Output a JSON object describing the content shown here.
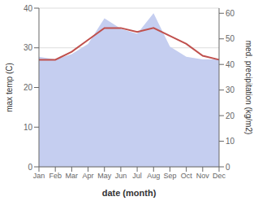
{
  "chart_data": {
    "type": "line",
    "xlabel": "date (month)",
    "ylabel": "max temp (C)",
    "y2label": "med. precipitation (kg/m2)",
    "categories": [
      "Jan",
      "Feb",
      "Mar",
      "Apr",
      "May",
      "Jun",
      "Jul",
      "Aug",
      "Sep",
      "Oct",
      "Nov",
      "Dec"
    ],
    "series": [
      {
        "type": "area",
        "axis": "y2",
        "color": "#c5cef0",
        "values": [
          43,
          42,
          44,
          48,
          58,
          54,
          52,
          60,
          47,
          43,
          42,
          42
        ]
      },
      {
        "type": "line",
        "color": "#c0504d",
        "values": [
          27,
          27,
          29,
          32,
          35,
          35,
          34,
          35,
          33,
          31,
          28,
          27
        ]
      }
    ],
    "ylim": [
      0,
      40
    ],
    "yticks": [
      0,
      10,
      20,
      30,
      40
    ],
    "y2lim": [
      0,
      62
    ],
    "y2ticks": [
      0,
      10,
      20,
      30,
      40,
      50,
      60
    ],
    "grid": true
  }
}
